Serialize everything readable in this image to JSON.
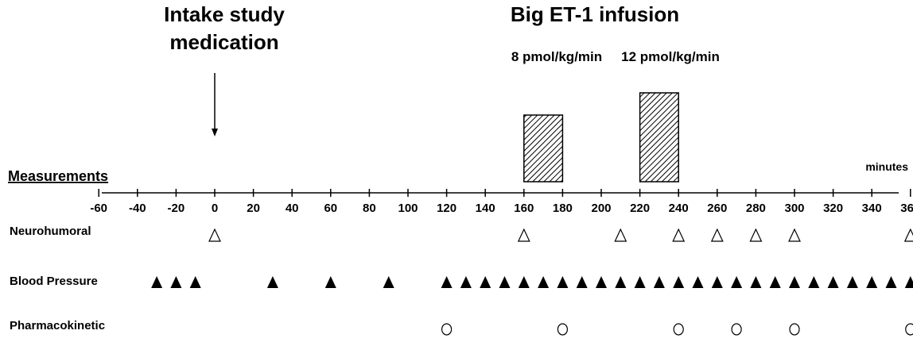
{
  "titles": {
    "intake_line1": "Intake study",
    "intake_line2": "medication",
    "infusion": "Big ET-1  infusion"
  },
  "doses": {
    "low": "8 pmol/kg/min",
    "high": "12 pmol/kg/min"
  },
  "axis": {
    "heading": "Measurements",
    "unit": "minutes",
    "ticks": [
      -60,
      -40,
      -20,
      0,
      20,
      40,
      60,
      80,
      100,
      120,
      140,
      160,
      180,
      200,
      220,
      240,
      260,
      280,
      300,
      320,
      340,
      360
    ]
  },
  "intake_time": 0,
  "infusions": [
    {
      "start": 160,
      "end": 180,
      "level": 8
    },
    {
      "start": 220,
      "end": 240,
      "level": 12
    }
  ],
  "rows": [
    {
      "label": "Neurohumoral",
      "marker": "open-triangle",
      "times": [
        0,
        160,
        210,
        240,
        260,
        280,
        300,
        360
      ]
    },
    {
      "label": "Blood Pressure",
      "marker": "filled-triangle",
      "times": [
        -30,
        -20,
        -10,
        30,
        60,
        90,
        120,
        130,
        140,
        150,
        160,
        170,
        180,
        190,
        200,
        210,
        220,
        230,
        240,
        250,
        260,
        270,
        280,
        290,
        300,
        310,
        320,
        330,
        340,
        350,
        360
      ]
    },
    {
      "label": "Pharmacokinetic",
      "marker": "open-circle",
      "times": [
        120,
        180,
        240,
        270,
        300,
        360
      ]
    }
  ]
}
